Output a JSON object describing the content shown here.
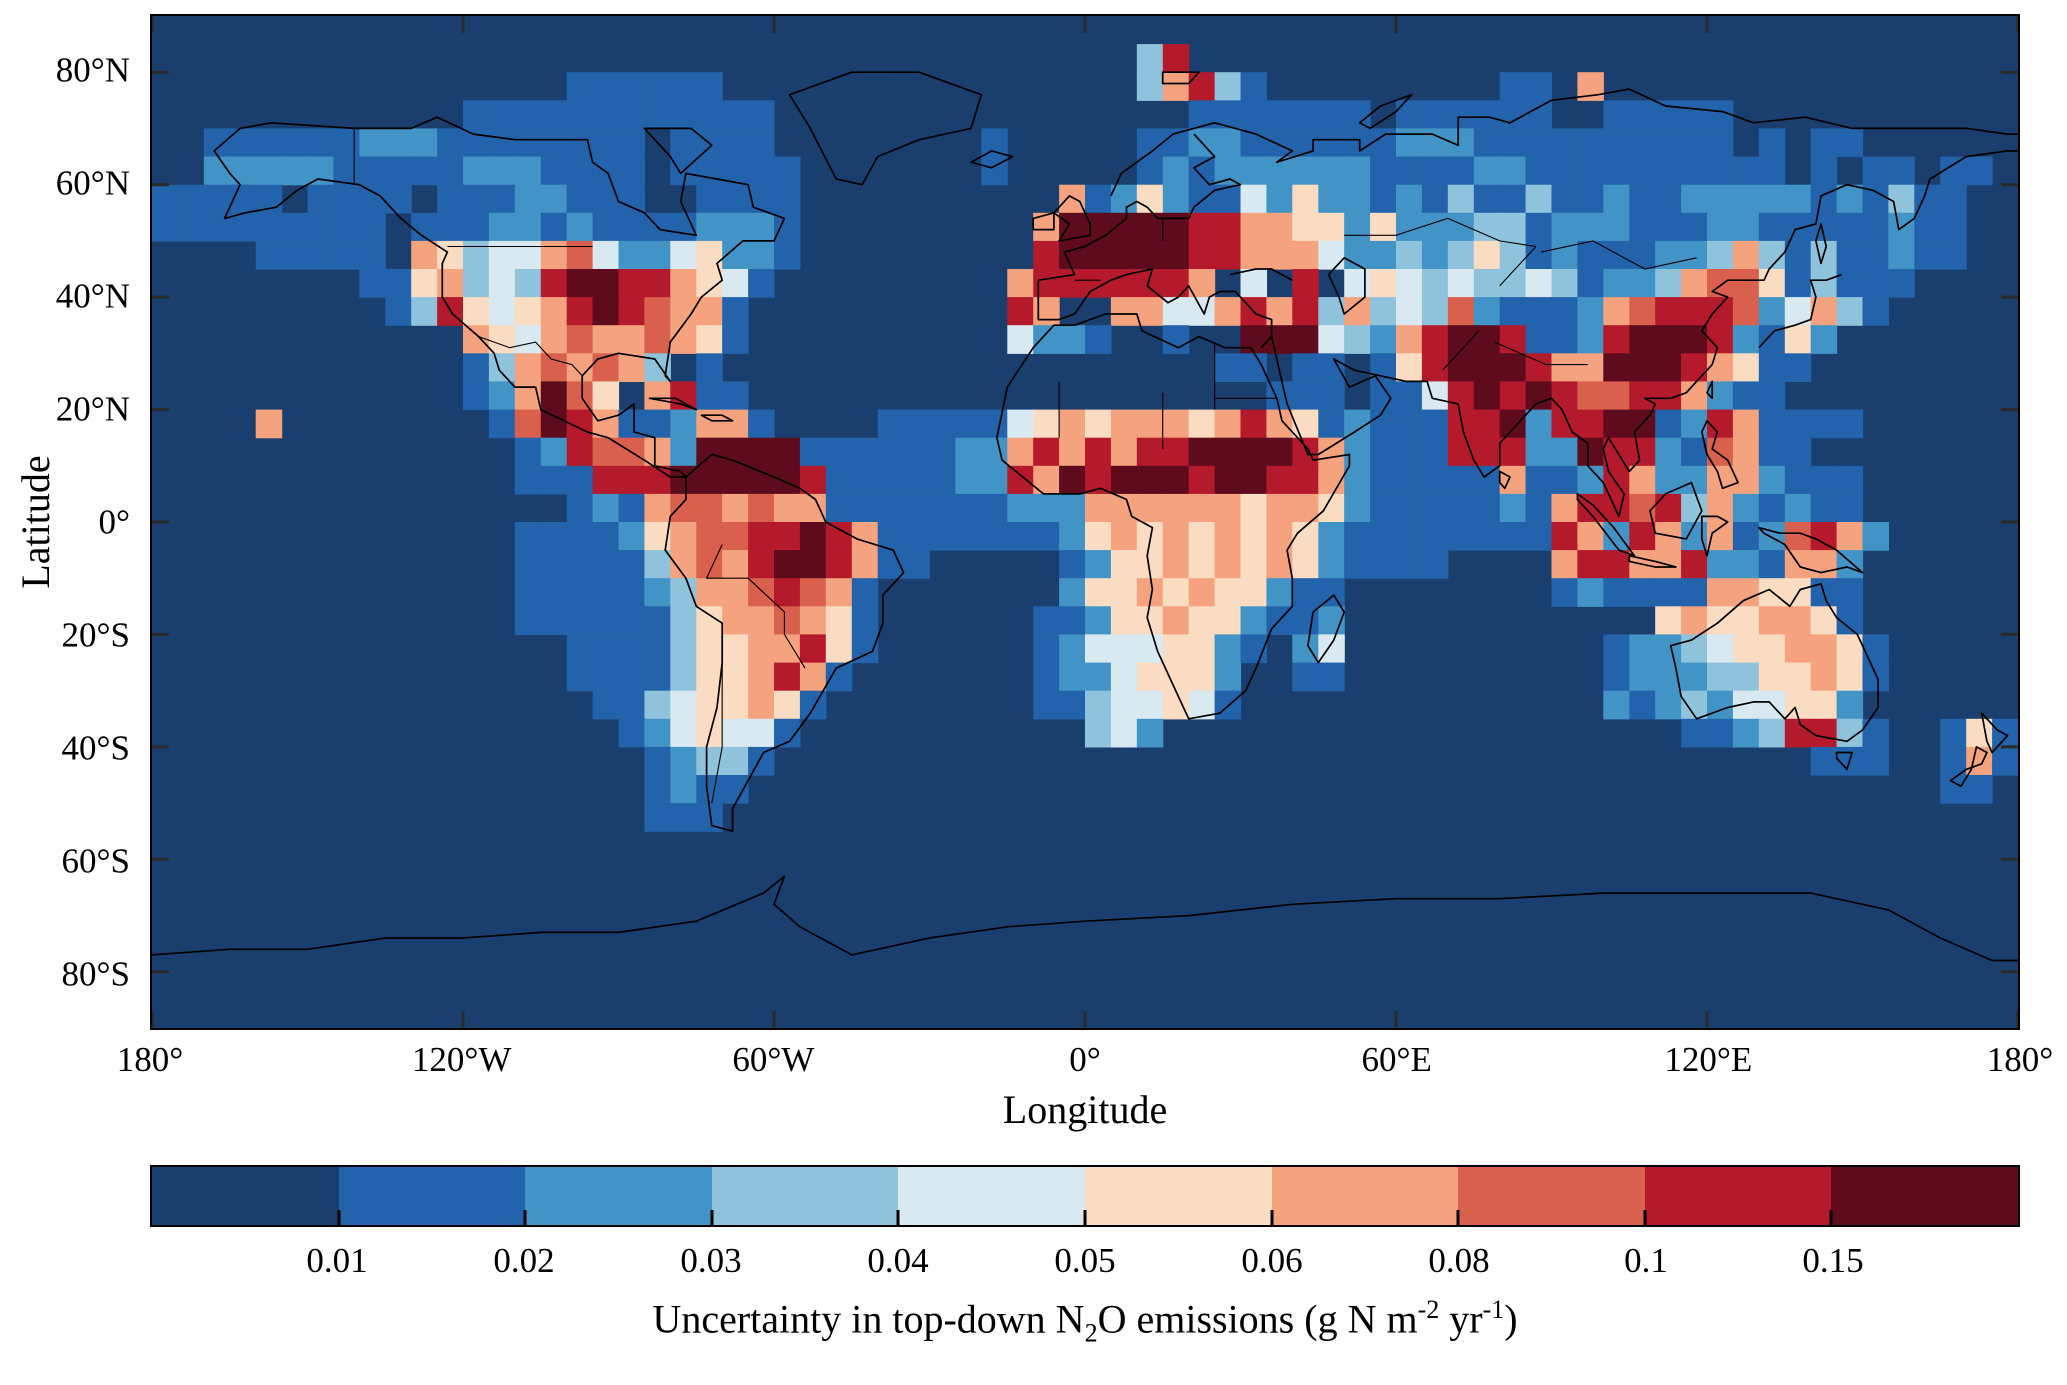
{
  "chart_data": {
    "type": "heatmap",
    "title": "",
    "xlabel": "Longitude",
    "ylabel": "Latitude",
    "x_tick_labels": [
      "180°",
      "120°W",
      "60°W",
      "0°",
      "60°E",
      "120°E",
      "180°"
    ],
    "y_tick_labels": [
      "80°N",
      "60°N",
      "40°N",
      "20°N",
      "0°",
      "20°S",
      "40°S",
      "60°S",
      "80°S"
    ],
    "x_range": [
      -180,
      180
    ],
    "y_range": [
      -90,
      90
    ],
    "grid_resolution_deg": 5,
    "grid_cols": 72,
    "grid_rows": 36,
    "legend_position": "bottom",
    "colorbar": {
      "tick_labels": [
        "0.01",
        "0.02",
        "0.03",
        "0.04",
        "0.05",
        "0.06",
        "0.08",
        "0.1",
        "0.15"
      ],
      "tick_values": [
        0.01,
        0.02,
        0.03,
        0.04,
        0.05,
        0.06,
        0.08,
        0.1,
        0.15
      ],
      "level_colors": [
        "#1a3e6e",
        "#2263ab",
        "#4394c6",
        "#8fc3dc",
        "#d8e9f1",
        "#fadcc3",
        "#f5a27f",
        "#d8604d",
        "#b5192c",
        "#5e0b1d"
      ],
      "caption_plain": "Uncertainty in top-down N2O emissions (g N m-2 yr-1)",
      "caption": {
        "pre": "Uncertainty in top-down N",
        "n_sub": "2",
        "mid": "O emissions (g N m",
        "sup1": "-2",
        "mid2": " yr",
        "sup2": "-1",
        "post": ")"
      }
    },
    "rows": [
      [
        "000000000000000000000000000000000000000000000000000000000000000000000000"
      ],
      [
        "00000000000000000000000000000000000000",
        "38",
        "00000000000000000000000000000000"
      ],
      [
        "0000000000000000",
        "111111",
        "0000000000000000",
        "36831",
        "000000000",
        "1106",
        "0000000000000000"
      ],
      [
        "000000000000",
        "111111111111",
        "0000000000000000",
        "1111111",
        "0",
        "111111",
        "00",
        "11111",
        "00000000000"
      ],
      [
        "00",
        "111111",
        "222",
        "11111111",
        "0",
        "1111",
        "00000000",
        "1",
        "00000",
        "11",
        "22",
        "1",
        "11111",
        "222",
        "1111111111",
        "0101100",
        "0000"
      ],
      [
        "00",
        "22222",
        "111",
        "11",
        "222",
        "1111",
        "0",
        "11111",
        "0000000",
        "1",
        "00000",
        "1",
        "2",
        "1",
        "2",
        "22222",
        "1111",
        "22",
        "111",
        "11111",
        "11010110",
        "11",
        "0"
      ],
      [
        "11111",
        "0",
        "1111",
        "0",
        "111",
        "22",
        "111",
        "00",
        "1111",
        "0000000000",
        "6",
        "1",
        "2",
        "5",
        "2",
        "1",
        "1",
        "4252212",
        "1311311211",
        "22222",
        "121311",
        "00"
      ],
      [
        "111111111",
        "0",
        "111",
        "22121",
        "1",
        "11",
        "222",
        "1",
        "000000000",
        "6",
        "99999",
        "88",
        "66",
        "55",
        "2",
        "5",
        "222",
        "33",
        "1",
        "222",
        "111",
        "22",
        "11111",
        "2",
        "11",
        "00"
      ],
      [
        "0000",
        "11111",
        "0",
        "653446742245221",
        "000000000",
        "899999886664223235312111223631311211",
        "00"
      ],
      [
        "00000000",
        "11",
        "5634389988654",
        "1",
        "000000000",
        "68888886040804543433431223677513111",
        "0000"
      ],
      [
        "000000000",
        "1",
        "3854568987661",
        "0000000000",
        "8600664468683634372111267888724631",
        "00000"
      ],
      [
        "00000000000",
        "065467667651",
        "0000000000",
        "42210010099943268998112899982152",
        "0000000"
      ],
      [
        "000000000000",
        "1367676301",
        "000000000000000000",
        "011011015899986699986511",
        "00000000"
      ],
      [
        "000000000000",
        "126975068110",
        "000000000000000000",
        "01110114",
        "8989877886211",
        "000000000"
      ],
      [
        "0000",
        "6",
        "00000000",
        "17986112661",
        "0000",
        "11111",
        "456566656865121",
        "118892889912861111",
        "000000"
      ],
      [
        "000000000000",
        "0012877629999",
        "1",
        "11111",
        "22",
        "686868899998621",
        "1188822988217611",
        "00000000"
      ],
      [
        "00000000000000",
        "111888999998",
        "1",
        "1111",
        "2",
        "2869899989988621",
        "1111",
        "61128622662111",
        "000000"
      ],
      [
        "0000000000000000",
        "121677676611",
        "1111",
        "122266666656652111",
        "1121688783621211",
        "000000"
      ],
      [
        "00000000000000",
        "1111",
        "2567788986",
        "111",
        "1",
        "111",
        "25656565652",
        "1",
        "111",
        "1111",
        "8628626127862",
        "00000"
      ],
      [
        "00000000000000",
        "1111",
        "1367689986",
        "1100",
        "000",
        "125565656521",
        "111",
        "0000",
        "688668221662",
        "000000"
      ],
      [
        "00000000000000",
        "1111",
        "1236678761",
        "0000",
        "000",
        "25565655211",
        "00000000",
        "121111665511",
        "000000"
      ],
      [
        "00000000000000",
        "111",
        "11135667651",
        "0000",
        "001",
        "12556552112",
        "00000000",
        "0000",
        "56556651",
        "000000"
      ],
      [
        "0000000000000000",
        "111",
        "135566851",
        "000000",
        "1",
        "24445521024",
        "0000000000",
        "12234556651",
        "00000"
      ],
      [
        "0000000000000000",
        "111",
        "13556861",
        "0000000",
        "1",
        "22455520011",
        "0000000000",
        "12223355651",
        "00000"
      ],
      [
        "00000000000000000",
        "11",
        "3455651",
        "00000000",
        "1",
        "1344541",
        "00000000000000",
        "2123244552",
        "000000"
      ],
      [
        "000000000000000000",
        "1245441",
        "00000000000",
        "342",
        "00000000000000000",
        "0001123883100151"
      ],
      [
        "0000000000000000000",
        "12331",
        "0000000000000000000000000000000000",
        "000000",
        "111",
        "00",
        "161"
      ],
      [
        "0000000000000000000",
        "1211",
        "0000000000000000000000000000000000000000000000",
        "11",
        "0"
      ],
      [
        "0000000000000000000",
        "111",
        "00000000000000000000000000000000000000000000000000"
      ],
      [
        "000000000000000000000000000000000000000000000000000000000000000000000000"
      ],
      [
        "000000000000000000000000000000000000000000000000000000000000000000000000"
      ],
      [
        "000000000000000000000000000000000000000000000000000000000000000000000000"
      ],
      [
        "000000000000000000000000000000000000000000000000000000000000000000000000"
      ],
      [
        "000000000000000000000000000000000000000000000000000000000000000000000000"
      ],
      [
        "000000000000000000000000000000000000000000000000000000000000000000000000"
      ],
      [
        "000000000000000000000000000000000000000000000000000000000000000000000000"
      ]
    ]
  }
}
